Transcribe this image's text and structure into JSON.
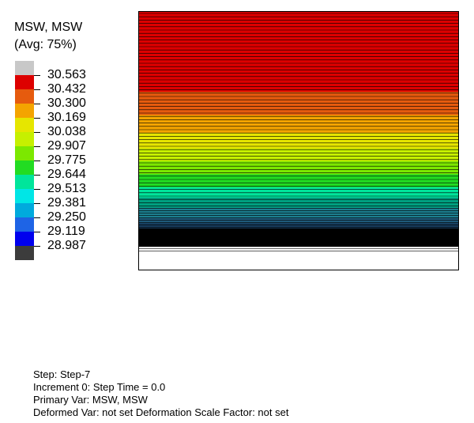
{
  "legend": {
    "title_line1": "MSW, MSW",
    "title_line2": "(Avg: 75%)",
    "labels": [
      "30.563",
      "30.432",
      "30.300",
      "30.169",
      "30.038",
      "29.907",
      "29.775",
      "29.644",
      "29.513",
      "29.381",
      "29.250",
      "29.119",
      "28.987"
    ],
    "colors": [
      "#c8c8c8",
      "#dd0000",
      "#e65b0e",
      "#f4a400",
      "#e6e600",
      "#c6f000",
      "#7ce800",
      "#22dc22",
      "#00e59b",
      "#00e6e6",
      "#00aadd",
      "#1e64e6",
      "#0000ee",
      "#3c3c3c"
    ]
  },
  "contour": {
    "bands_top_to_bottom": [
      {
        "color": "#dd0000",
        "fraction": 0.31
      },
      {
        "color": "#e65b0e",
        "fraction": 0.09
      },
      {
        "color": "#f4a400",
        "fraction": 0.07
      },
      {
        "color": "#e6e600",
        "fraction": 0.06
      },
      {
        "color": "#c6f000",
        "fraction": 0.05
      },
      {
        "color": "#7ce800",
        "fraction": 0.05
      },
      {
        "color": "#22dc22",
        "fraction": 0.05
      },
      {
        "color": "#00e59b",
        "fraction": 0.04
      },
      {
        "color": "#00a080",
        "fraction": 0.04
      },
      {
        "color": "#1c7f8f",
        "fraction": 0.04
      },
      {
        "color": "#1e5a7a",
        "fraction": 0.02
      },
      {
        "color": "#173c5c",
        "fraction": 0.02
      },
      {
        "color": "#000000",
        "fraction": 0.07
      }
    ]
  },
  "info": {
    "step": "Step: Step-7",
    "increment": "Increment 0: Step Time = 0.0",
    "primary_var": "Primary Var: MSW, MSW",
    "deformed_var": "Deformed Var: not set   Deformation Scale Factor: not set"
  }
}
